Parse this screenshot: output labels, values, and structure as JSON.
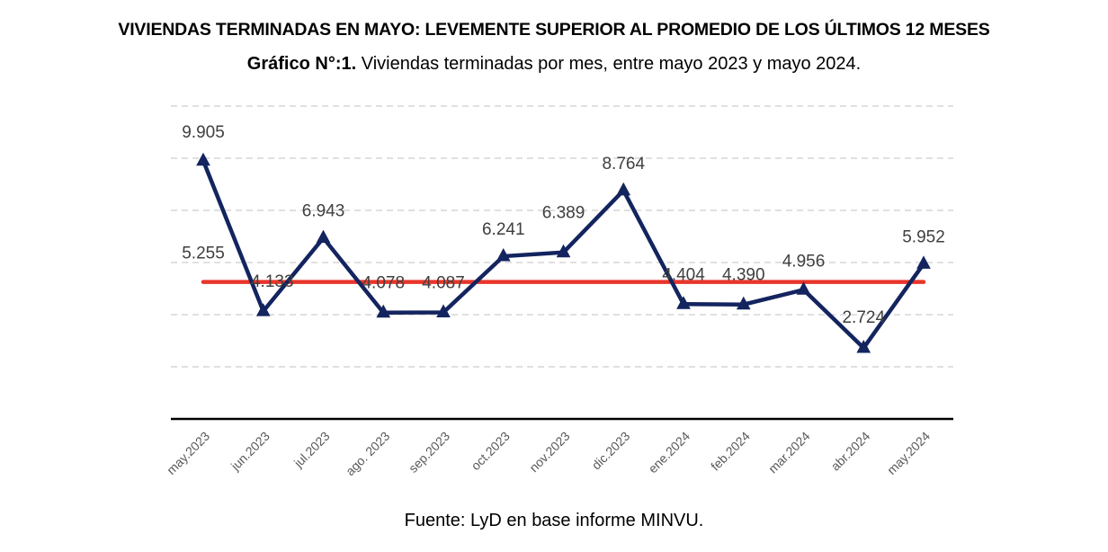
{
  "header": {
    "title": "VIVIENDAS TERMINADAS EN MAYO: LEVEMENTE SUPERIOR AL PROMEDIO DE LOS ÚLTIMOS 12 MESES",
    "subtitle_bold": "Gráfico N°:1.",
    "subtitle_rest": " Viviendas terminadas por mes, entre mayo 2023 y mayo 2024."
  },
  "footer": {
    "source": "Fuente: LyD en base informe MINVU."
  },
  "chart_data": {
    "type": "line",
    "title": "Viviendas terminadas por mes, entre mayo 2023 y mayo 2024",
    "xlabel": "",
    "ylabel": "",
    "categories": [
      "may.2023",
      "jun.2023",
      "jul.2023",
      "ago. 2023",
      "sep.2023",
      "oct.2023",
      "nov.2023",
      "dic.2023",
      "ene.2024",
      "feb.2024",
      "mar.2024",
      "abr.2024",
      "may.2024"
    ],
    "ylim": [
      0,
      12000
    ],
    "y_gridlines": [
      2000,
      4000,
      6000,
      8000,
      10000,
      12000
    ],
    "grid": true,
    "y_tick_labels_shown": false,
    "series": [
      {
        "name": "Viviendas terminadas",
        "color": "#13245f",
        "marker": "triangle",
        "values": [
          9905,
          4133,
          6943,
          4078,
          4087,
          6241,
          6389,
          8764,
          4404,
          4390,
          4956,
          2724,
          5952
        ],
        "labels": [
          "9.905",
          "4.133",
          "6.943",
          "4.078",
          "4.087",
          "6.241",
          "6.389",
          "8.764",
          "4.404",
          "4.390",
          "4.956",
          "2.724",
          "5.952"
        ]
      },
      {
        "name": "Promedio últimos 12 meses",
        "color": "#e8352a",
        "constant_value": 5255,
        "label": "5.255"
      }
    ],
    "legend": "none"
  }
}
